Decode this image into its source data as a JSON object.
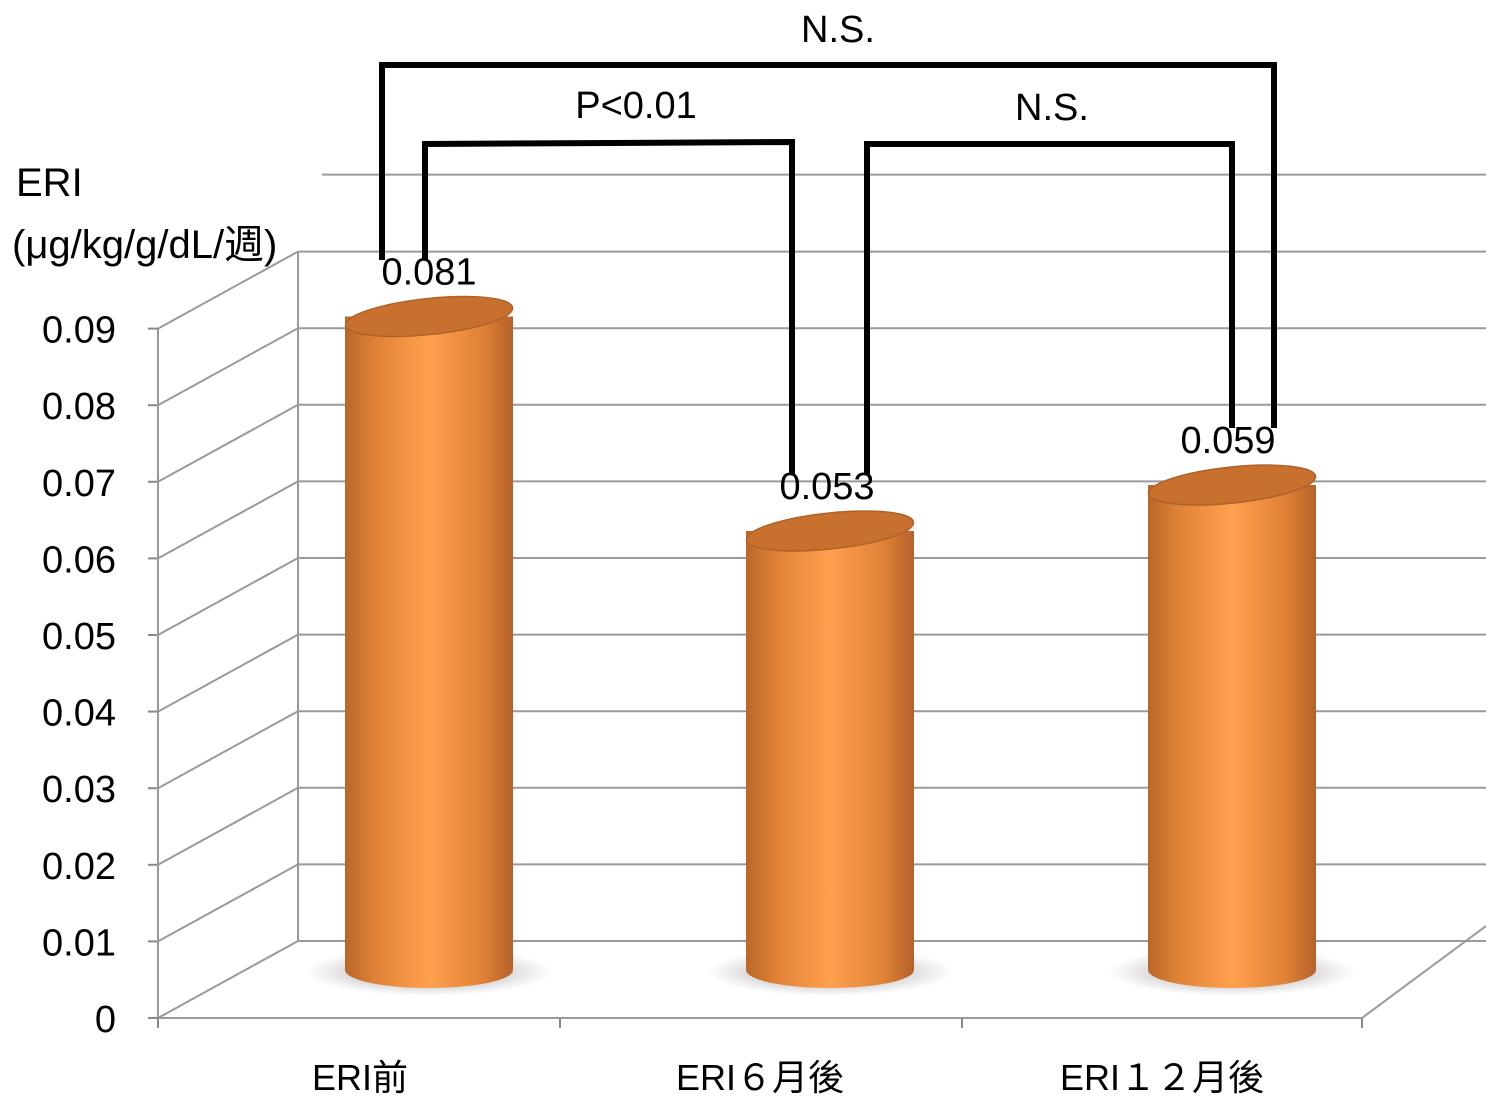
{
  "chart_data": {
    "type": "bar",
    "style": "3d-cylinder",
    "ylabel_line1": "ERI",
    "ylabel_line2": "(μg/kg/g/dL/週)",
    "categories": [
      "ERI前",
      "ERI６月後",
      "ERI１２月後"
    ],
    "values": [
      0.081,
      0.053,
      0.059
    ],
    "value_labels": [
      "0.081",
      "0.053",
      "0.059"
    ],
    "ylim": [
      0,
      0.09
    ],
    "yticks": [
      "0",
      "0.01",
      "0.02",
      "0.03",
      "0.04",
      "0.05",
      "0.06",
      "0.07",
      "0.08",
      "0.09"
    ],
    "grid": true,
    "bar_color": "#F79646",
    "significance": [
      {
        "from": 0,
        "to": 1,
        "label": "P<0.01"
      },
      {
        "from": 1,
        "to": 2,
        "label": "N.S."
      },
      {
        "from": 0,
        "to": 2,
        "label": "N.S."
      }
    ]
  }
}
